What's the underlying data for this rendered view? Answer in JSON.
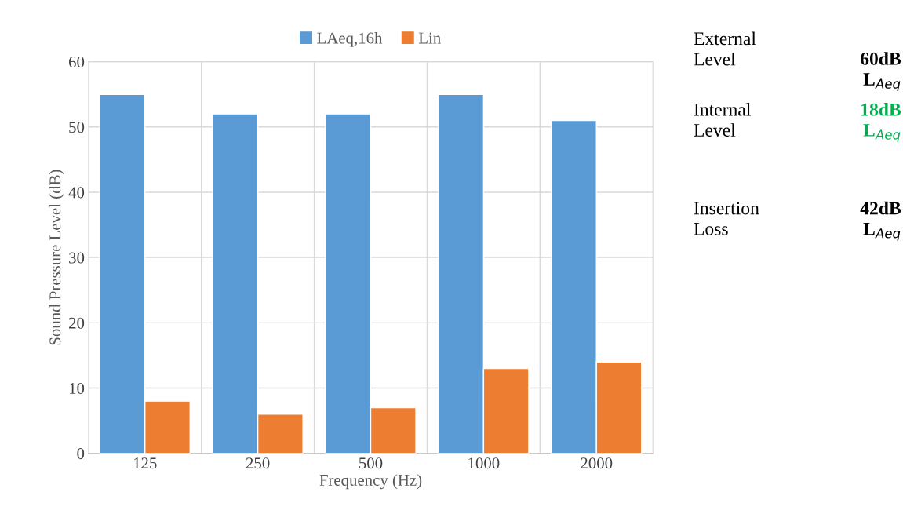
{
  "chart_data": [
    {
      "type": "bar",
      "xlabel": "Frequency (Hz)",
      "ylabel": "Sound Pressure Level (dB)",
      "categories": [
        "125",
        "250",
        "500",
        "1000",
        "2000"
      ],
      "series": [
        {
          "name": "LAeq,16h",
          "color": "#5b9bd5",
          "values": [
            55,
            52,
            52,
            55,
            51
          ]
        },
        {
          "name": "Lin",
          "color": "#ed7d31",
          "values": [
            8,
            6,
            7,
            13,
            14
          ]
        }
      ],
      "ylim": [
        0,
        60
      ],
      "yticks": [
        0,
        10,
        20,
        30,
        40,
        50,
        60
      ],
      "grid": true,
      "legend": "top"
    },
    {
      "type": "other",
      "annotations": [
        "External\nLevel",
        "60dB\nL$_{Aeq}$",
        "Internal\nLevel",
        "18dB\nL$_{Aeq}$",
        "Insertion\nLoss",
        "42dB\nL$_{Aeq}$"
      ],
      "colors": [
        "#000000",
        "#000000",
        "#000000",
        "#00b050",
        "#000000",
        "#000000"
      ]
    }
  ]
}
